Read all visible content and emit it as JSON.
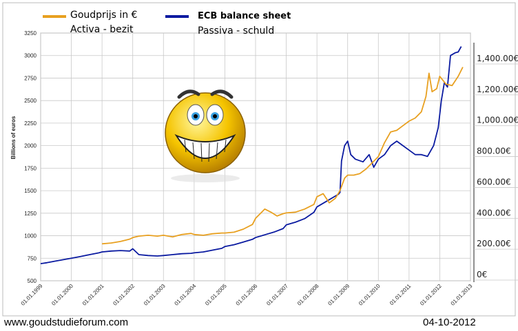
{
  "chart_data": {
    "type": "line",
    "ylabel": "Billions of euros",
    "left_axis": {
      "ylim": [
        500,
        3250
      ],
      "ticks": [
        "500",
        "750",
        "1000",
        "1250",
        "1500",
        "1750",
        "2000",
        "2250",
        "2500",
        "2750",
        "3000",
        "3250"
      ]
    },
    "right_axis": {
      "ylim": [
        0,
        1400
      ],
      "ticks": [
        "0€",
        "200.00€",
        "400.00€",
        "600.00€",
        "800.00€",
        "1,000.00€",
        "1,200.00€",
        "1,400.00€"
      ]
    },
    "x_ticks": [
      "01.01.1999",
      "01.01.2000",
      "01.01.2001",
      "01.01.2002",
      "01.01.2003",
      "01.01.2004",
      "01.01.2005",
      "01.01.2006",
      "01.01.2007",
      "01.01.2008",
      "01.01.2009",
      "01.01.2010",
      "01.01.2011",
      "01.01.2012",
      "01.01.2013"
    ],
    "x_range": [
      1999.0,
      2013.0
    ],
    "grid": true,
    "legend_position": "top-left",
    "series": [
      {
        "name": "ECB balance sheet",
        "axis": "left",
        "color": "#0a1aa0",
        "points": [
          [
            1999.0,
            690
          ],
          [
            1999.2,
            700
          ],
          [
            1999.5,
            720
          ],
          [
            1999.75,
            735
          ],
          [
            2000.0,
            750
          ],
          [
            2000.3,
            770
          ],
          [
            2000.6,
            790
          ],
          [
            2000.9,
            810
          ],
          [
            2001.0,
            820
          ],
          [
            2001.3,
            830
          ],
          [
            2001.6,
            835
          ],
          [
            2001.9,
            830
          ],
          [
            2002.0,
            855
          ],
          [
            2002.2,
            790
          ],
          [
            2002.5,
            780
          ],
          [
            2002.8,
            775
          ],
          [
            2003.0,
            780
          ],
          [
            2003.3,
            790
          ],
          [
            2003.6,
            800
          ],
          [
            2003.9,
            805
          ],
          [
            2004.0,
            810
          ],
          [
            2004.3,
            820
          ],
          [
            2004.6,
            840
          ],
          [
            2004.9,
            860
          ],
          [
            2005.0,
            880
          ],
          [
            2005.3,
            900
          ],
          [
            2005.6,
            930
          ],
          [
            2005.9,
            960
          ],
          [
            2006.0,
            980
          ],
          [
            2006.3,
            1010
          ],
          [
            2006.6,
            1040
          ],
          [
            2006.9,
            1080
          ],
          [
            2007.0,
            1120
          ],
          [
            2007.3,
            1150
          ],
          [
            2007.6,
            1190
          ],
          [
            2007.9,
            1260
          ],
          [
            2008.0,
            1320
          ],
          [
            2008.3,
            1380
          ],
          [
            2008.6,
            1440
          ],
          [
            2008.7,
            1460
          ],
          [
            2008.75,
            1480
          ],
          [
            2008.8,
            1830
          ],
          [
            2008.9,
            2000
          ],
          [
            2009.0,
            2050
          ],
          [
            2009.1,
            1900
          ],
          [
            2009.25,
            1850
          ],
          [
            2009.5,
            1820
          ],
          [
            2009.7,
            1900
          ],
          [
            2009.85,
            1760
          ],
          [
            2010.0,
            1850
          ],
          [
            2010.2,
            1900
          ],
          [
            2010.4,
            2000
          ],
          [
            2010.6,
            2050
          ],
          [
            2010.8,
            2000
          ],
          [
            2011.0,
            1950
          ],
          [
            2011.2,
            1900
          ],
          [
            2011.4,
            1900
          ],
          [
            2011.6,
            1880
          ],
          [
            2011.8,
            2000
          ],
          [
            2011.95,
            2200
          ],
          [
            2012.05,
            2500
          ],
          [
            2012.15,
            2700
          ],
          [
            2012.25,
            2650
          ],
          [
            2012.35,
            3000
          ],
          [
            2012.5,
            3030
          ],
          [
            2012.6,
            3040
          ],
          [
            2012.7,
            3100
          ]
        ]
      },
      {
        "name": "Goudprijs in €",
        "axis": "right",
        "color": "#e8a020",
        "points": [
          [
            2001.0,
            195
          ],
          [
            2001.3,
            200
          ],
          [
            2001.6,
            210
          ],
          [
            2001.9,
            225
          ],
          [
            2002.0,
            235
          ],
          [
            2002.2,
            245
          ],
          [
            2002.5,
            250
          ],
          [
            2002.8,
            245
          ],
          [
            2003.0,
            250
          ],
          [
            2003.3,
            240
          ],
          [
            2003.6,
            255
          ],
          [
            2003.9,
            262
          ],
          [
            2004.0,
            255
          ],
          [
            2004.3,
            250
          ],
          [
            2004.6,
            260
          ],
          [
            2004.9,
            265
          ],
          [
            2005.0,
            265
          ],
          [
            2005.3,
            270
          ],
          [
            2005.6,
            290
          ],
          [
            2005.9,
            320
          ],
          [
            2006.0,
            360
          ],
          [
            2006.3,
            420
          ],
          [
            2006.5,
            400
          ],
          [
            2006.7,
            375
          ],
          [
            2006.9,
            390
          ],
          [
            2007.0,
            395
          ],
          [
            2007.3,
            400
          ],
          [
            2007.6,
            420
          ],
          [
            2007.9,
            450
          ],
          [
            2008.0,
            500
          ],
          [
            2008.2,
            520
          ],
          [
            2008.4,
            460
          ],
          [
            2008.6,
            490
          ],
          [
            2008.75,
            540
          ],
          [
            2008.9,
            620
          ],
          [
            2009.0,
            640
          ],
          [
            2009.2,
            640
          ],
          [
            2009.4,
            650
          ],
          [
            2009.6,
            680
          ],
          [
            2009.8,
            720
          ],
          [
            2010.0,
            760
          ],
          [
            2010.2,
            850
          ],
          [
            2010.4,
            920
          ],
          [
            2010.6,
            930
          ],
          [
            2010.8,
            960
          ],
          [
            2011.0,
            990
          ],
          [
            2011.2,
            1010
          ],
          [
            2011.4,
            1050
          ],
          [
            2011.55,
            1150
          ],
          [
            2011.65,
            1300
          ],
          [
            2011.75,
            1180
          ],
          [
            2011.9,
            1200
          ],
          [
            2012.0,
            1280
          ],
          [
            2012.2,
            1230
          ],
          [
            2012.4,
            1220
          ],
          [
            2012.6,
            1280
          ],
          [
            2012.75,
            1340
          ]
        ]
      }
    ]
  },
  "legend": {
    "gold_label": "Goudprijs in €",
    "gold_sub": "Activa - bezit",
    "ecb_label": "ECB balance sheet",
    "ecb_sub": "Passiva - schuld"
  },
  "footer": {
    "website": "www.goudstudieforum.com",
    "date": "04-10-2012"
  },
  "decoration": {
    "icon": "smiley-icon"
  }
}
